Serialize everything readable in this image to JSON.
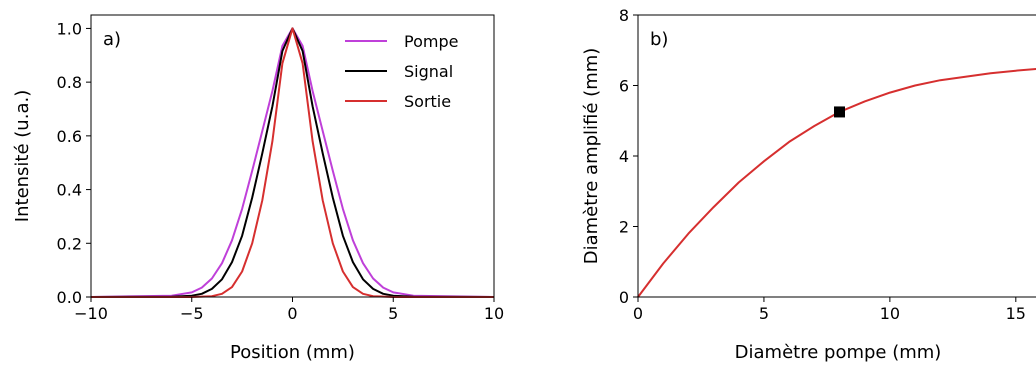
{
  "colors": {
    "pompe": "#bf40d9",
    "signal": "#000000",
    "sortie": "#d62f2f",
    "marker": "#000000"
  },
  "chart_data": [
    {
      "type": "line",
      "panel_label": "a)",
      "xlabel": "Position (mm)",
      "ylabel": "Intensité (u.a.)",
      "xlim": [
        -10,
        10
      ],
      "ylim": [
        0,
        1.05
      ],
      "xticks": [
        -10,
        -5,
        0,
        5,
        10
      ],
      "xtick_labels": [
        "−10",
        "−5",
        "0",
        "5",
        "10"
      ],
      "yticks": [
        0,
        0.2,
        0.4,
        0.6,
        0.8,
        1.0
      ],
      "ytick_labels": [
        "0.0",
        "0.2",
        "0.4",
        "0.6",
        "0.8",
        "1.0"
      ],
      "legend_position": "top-right",
      "series": [
        {
          "name": "Pompe",
          "color": "#bf40d9",
          "x": [
            -10,
            -6,
            -5,
            -4.5,
            -4,
            -3.5,
            -3,
            -2.5,
            -2,
            -1.5,
            -1,
            -0.5,
            0,
            0.5,
            1,
            1.5,
            2,
            2.5,
            3,
            3.5,
            4,
            4.5,
            5,
            6,
            10
          ],
          "y": [
            0,
            0.005,
            0.017,
            0.035,
            0.069,
            0.126,
            0.211,
            0.328,
            0.47,
            0.618,
            0.767,
            0.935,
            1.0,
            0.935,
            0.767,
            0.618,
            0.47,
            0.328,
            0.211,
            0.126,
            0.069,
            0.035,
            0.017,
            0.005,
            0
          ]
        },
        {
          "name": "Signal",
          "color": "#000000",
          "x": [
            -10,
            -6,
            -5,
            -4.5,
            -4,
            -3.5,
            -3,
            -2.5,
            -2,
            -1.5,
            -1,
            -0.5,
            0,
            0.5,
            1,
            1.5,
            2,
            2.5,
            3,
            3.5,
            4,
            4.5,
            5,
            6,
            10
          ],
          "y": [
            0,
            0.001,
            0.005,
            0.012,
            0.03,
            0.066,
            0.13,
            0.228,
            0.37,
            0.535,
            0.71,
            0.916,
            1.0,
            0.916,
            0.71,
            0.535,
            0.37,
            0.228,
            0.13,
            0.066,
            0.03,
            0.012,
            0.005,
            0.001,
            0
          ]
        },
        {
          "name": "Sortie",
          "color": "#d62f2f",
          "x": [
            -10,
            -5,
            -4,
            -3.5,
            -3,
            -2.5,
            -2,
            -1.5,
            -1,
            -0.5,
            0,
            0.5,
            1,
            1.5,
            2,
            2.5,
            3,
            3.5,
            4,
            5,
            10
          ],
          "y": [
            0,
            0,
            0.003,
            0.012,
            0.037,
            0.095,
            0.2,
            0.36,
            0.58,
            0.87,
            1.0,
            0.87,
            0.58,
            0.36,
            0.2,
            0.095,
            0.037,
            0.012,
            0.003,
            0,
            0
          ]
        }
      ]
    },
    {
      "type": "line",
      "panel_label": "b)",
      "xlabel": "Diamètre pompe (mm)",
      "ylabel": "Diamètre amplifié (mm)",
      "xlim": [
        0,
        16
      ],
      "ylim": [
        0,
        8
      ],
      "xticks": [
        0,
        5,
        10,
        15
      ],
      "xtick_labels": [
        "0",
        "5",
        "10",
        "15"
      ],
      "yticks": [
        0,
        2,
        4,
        6,
        8
      ],
      "ytick_labels": [
        "0",
        "2",
        "4",
        "6",
        "8"
      ],
      "series": [
        {
          "color": "#d62f2f",
          "x": [
            0,
            1,
            2,
            3,
            4,
            5,
            6,
            7,
            8,
            9,
            10,
            11,
            12,
            13,
            14,
            15,
            16
          ],
          "y": [
            0,
            0.95,
            1.8,
            2.55,
            3.25,
            3.85,
            4.4,
            4.85,
            5.25,
            5.55,
            5.8,
            6.0,
            6.15,
            6.25,
            6.35,
            6.42,
            6.48
          ]
        }
      ],
      "markers": [
        {
          "x": 8,
          "y": 5.25,
          "shape": "square",
          "color": "#000000"
        }
      ]
    }
  ]
}
